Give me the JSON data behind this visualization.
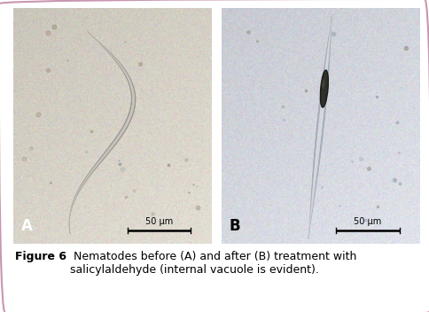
{
  "figure_title_bold": "Figure 6",
  "figure_caption": " Nematodes before (A) and after (B) treatment with\nsalicylaldehyde (internal vacuole is evident).",
  "label_A": "A",
  "label_B": "B",
  "scale_text": "50 μm",
  "border_color": "#c896b0",
  "background_color": "#ffffff",
  "caption_fontsize": 9.0,
  "label_fontsize": 12,
  "scale_fontsize": 7.0,
  "bg_color_A_r": 0.84,
  "bg_color_A_g": 0.82,
  "bg_color_A_b": 0.78,
  "bg_color_B_r": 0.83,
  "bg_color_B_g": 0.84,
  "bg_color_B_b": 0.87,
  "noise_std": 0.03
}
